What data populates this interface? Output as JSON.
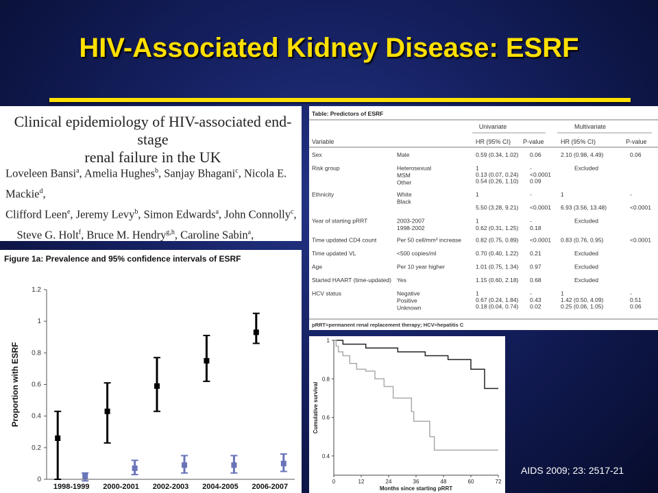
{
  "slide": {
    "title": "HIV-Associated Kidney Disease: ESRF",
    "citation": "AIDS 2009; 23: 2517-21"
  },
  "paper": {
    "title_line1": "Clinical epidemiology of HIV-associated end-stage",
    "title_line2": "renal failure in the UK"
  },
  "figure_caption": "Figure 1a: Prevalence and 95% confidence intervals of ESRF",
  "table": {
    "title": "Table: Predictors of ESRF",
    "group_headers": [
      "Univariate",
      "Multivariate"
    ],
    "columns": [
      "Variable",
      "HR (95% CI)",
      "P-value",
      "HR (95% CI)",
      "P-value"
    ],
    "rows": [
      {
        "var": "Sex",
        "levels": [
          "Male"
        ],
        "uhr": [
          "0.59 (0.34, 1.02)"
        ],
        "up": [
          "0.06"
        ],
        "mhr": [
          "2.10 (0.98, 4.49)"
        ],
        "mp": [
          "0.06"
        ]
      },
      {
        "var": "Risk group",
        "levels": [
          "Heterosexual",
          "MSM",
          "Other"
        ],
        "uhr": [
          "1",
          "0.13 (0.07, 0.24)",
          "0.54 (0.26, 1.10)"
        ],
        "up": [
          "-",
          "<0.0001",
          "0.09"
        ],
        "mhr": [
          "Excluded"
        ],
        "mp": []
      },
      {
        "var": "Ethnicity",
        "levels": [
          "White",
          "Black"
        ],
        "uhr": [
          "1",
          "",
          "5.50 (3.28, 9.21)"
        ],
        "up": [
          "-",
          "",
          "<0.0001"
        ],
        "mhr": [
          "1",
          "",
          "6.93 (3.56, 13.48)"
        ],
        "mp": [
          "-",
          "",
          "<0.0001"
        ]
      },
      {
        "var": "Year of starting pRRT",
        "levels": [
          "2003-2007",
          "1998-2002"
        ],
        "uhr": [
          "1",
          "0.62 (0.31, 1.25)"
        ],
        "up": [
          "-",
          "0.18"
        ],
        "mhr": [
          "Excluded"
        ],
        "mp": []
      },
      {
        "var": "Time updated CD4 count",
        "levels": [
          "Per 50 cell/mm³ increase"
        ],
        "uhr": [
          "0.82 (0.75, 0.89)"
        ],
        "up": [
          "<0.0001"
        ],
        "mhr": [
          "0.83 (0.76, 0.95)"
        ],
        "mp": [
          "<0.0001"
        ]
      },
      {
        "var": "Time updated VL",
        "levels": [
          "<500 copies/ml"
        ],
        "uhr": [
          "0.70 (0.40, 1.22)"
        ],
        "up": [
          "0.21"
        ],
        "mhr": [
          "Excluded"
        ],
        "mp": []
      },
      {
        "var": "Age",
        "levels": [
          "Per 10 year higher"
        ],
        "uhr": [
          "1.01 (0.75, 1.34)"
        ],
        "up": [
          "0.97"
        ],
        "mhr": [
          "Excluded"
        ],
        "mp": []
      },
      {
        "var": "Started HAART (time-updated)",
        "levels": [
          "Yes"
        ],
        "uhr": [
          "1.15 (0.60, 2.18)"
        ],
        "up": [
          "0.68"
        ],
        "mhr": [
          "Excluded"
        ],
        "mp": []
      },
      {
        "var": "HCV status",
        "levels": [
          "Negative",
          "Positive",
          "Unknown"
        ],
        "uhr": [
          "1",
          "0.67 (0.24, 1.84)",
          "0.18 (0.04, 0.74)"
        ],
        "up": [
          "-",
          "0.43",
          "0.02"
        ],
        "mhr": [
          "1",
          "1.42 (0.50, 4.09)",
          "0.25 (0.06, 1.05)"
        ],
        "mp": [
          "-",
          "0.51",
          "0.06"
        ]
      }
    ],
    "footnote": "pRRT=permanent renal replacement therapy; HCV=hepatitis C"
  },
  "chart_data": [
    {
      "type": "scatter",
      "ylabel": "Proportion with ESRF",
      "xlabel": "",
      "categories": [
        "1998-1999",
        "2000-2001",
        "2002-2003",
        "2004-2005",
        "2006-2007"
      ],
      "yticks": [
        "0",
        "0.2",
        "0.4",
        "0.6",
        "0.8",
        "1",
        "1.2"
      ],
      "ylim": [
        0,
        1.2
      ],
      "series": [
        {
          "color": "#000000",
          "values": [
            0.26,
            0.43,
            0.59,
            0.75,
            0.93
          ],
          "lower": [
            0.0,
            0.23,
            0.43,
            0.62,
            0.86
          ],
          "upper": [
            0.43,
            0.61,
            0.77,
            0.91,
            1.05
          ]
        },
        {
          "color": "#6a74b8",
          "values": [
            0.02,
            0.07,
            0.09,
            0.09,
            0.1
          ],
          "lower": [
            -0.01,
            0.03,
            0.04,
            0.04,
            0.05
          ],
          "upper": [
            0.04,
            0.12,
            0.15,
            0.15,
            0.16
          ]
        }
      ],
      "grid": false
    },
    {
      "type": "line",
      "xlabel": "Months since starting pRRT",
      "ylabel": "Cumulative survival",
      "xticks": [
        "0",
        "12",
        "24",
        "36",
        "48",
        "60",
        "72"
      ],
      "yticks": [
        "0.4",
        "0.6",
        "0.8",
        "1"
      ],
      "xlim": [
        0,
        72
      ],
      "ylim": [
        0.3,
        1.0
      ],
      "series": [
        {
          "color": "#222222",
          "step": [
            [
              0,
              1.0
            ],
            [
              4,
              1.0
            ],
            [
              4,
              0.98
            ],
            [
              14,
              0.98
            ],
            [
              14,
              0.96
            ],
            [
              28,
              0.96
            ],
            [
              28,
              0.94
            ],
            [
              40,
              0.94
            ],
            [
              40,
              0.92
            ],
            [
              50,
              0.92
            ],
            [
              50,
              0.9
            ],
            [
              60,
              0.9
            ],
            [
              60,
              0.85
            ],
            [
              66,
              0.85
            ],
            [
              66,
              0.75
            ],
            [
              72,
              0.75
            ]
          ]
        },
        {
          "color": "#aaaaaa",
          "step": [
            [
              0,
              1.0
            ],
            [
              1,
              0.97
            ],
            [
              2,
              0.94
            ],
            [
              4,
              0.92
            ],
            [
              7,
              0.88
            ],
            [
              10,
              0.85
            ],
            [
              14,
              0.84
            ],
            [
              18,
              0.8
            ],
            [
              22,
              0.76
            ],
            [
              26,
              0.7
            ],
            [
              34,
              0.63
            ],
            [
              35,
              0.58
            ],
            [
              42,
              0.5
            ],
            [
              44,
              0.43
            ],
            [
              72,
              0.43
            ]
          ]
        }
      ],
      "grid": false
    }
  ]
}
